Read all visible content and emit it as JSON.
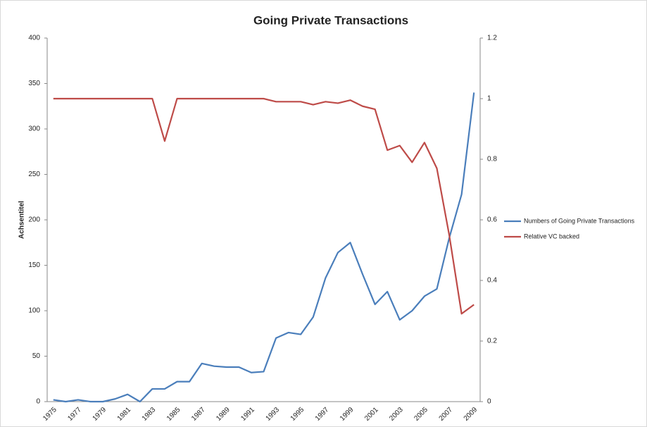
{
  "chart_data": {
    "type": "line",
    "title": "Going Private Transactions",
    "y_label": "Achsentitel",
    "categories": [
      "1975",
      null,
      "1977",
      null,
      "1979",
      null,
      "1981",
      null,
      "1983",
      null,
      "1985",
      null,
      "1987",
      null,
      "1989",
      null,
      "1991",
      null,
      "1993",
      null,
      "1995",
      null,
      "1997",
      null,
      "1999",
      null,
      "2001",
      null,
      "2003",
      null,
      "2005",
      null,
      "2007",
      null,
      "2009"
    ],
    "series": [
      {
        "name": "Numbers of Going Private Transactions",
        "color": "#4a7ebb",
        "values": [
          2,
          0,
          2,
          0,
          0,
          3,
          8,
          0,
          14,
          14,
          22,
          22,
          42,
          39,
          38,
          38,
          32,
          33,
          70,
          76,
          74,
          93,
          136,
          164,
          175,
          140,
          107,
          121,
          90,
          100,
          116,
          124,
          180,
          228,
          340
        ]
      },
      {
        "name": "Relative VC backed",
        "color": "#be4b48",
        "axis": "y2",
        "values": [
          1,
          1,
          1,
          1,
          1,
          1,
          1,
          1,
          1,
          0.86,
          1,
          1,
          1,
          1,
          1,
          1,
          1,
          1,
          0.99,
          0.99,
          0.99,
          0.98,
          0.99,
          0.985,
          0.995,
          0.975,
          0.965,
          0.83,
          0.845,
          0.79,
          0.855,
          0.77,
          0.55,
          0.29,
          0.32
        ]
      }
    ],
    "ylim": [
      0,
      400
    ],
    "yticks": [
      0,
      50,
      100,
      150,
      200,
      250,
      300,
      350,
      400
    ],
    "y2lim": [
      0,
      1.2
    ],
    "y2ticks": [
      0,
      0.2,
      0.4,
      0.6,
      0.8,
      1,
      1.2
    ],
    "legend": "right"
  }
}
